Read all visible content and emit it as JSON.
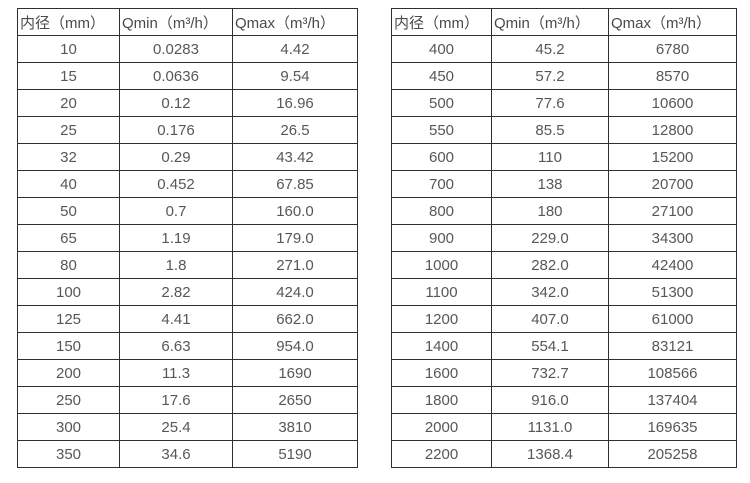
{
  "tables": [
    {
      "title": "flow-rate-table-small-diameters",
      "headers": [
        "内径（mm）",
        "Qmin（m³/h）",
        "Qmax（m³/h）"
      ],
      "rows": [
        [
          "10",
          "0.0283",
          "4.42"
        ],
        [
          "15",
          "0.0636",
          "9.54"
        ],
        [
          "20",
          "0.12",
          "16.96"
        ],
        [
          "25",
          "0.176",
          "26.5"
        ],
        [
          "32",
          "0.29",
          "43.42"
        ],
        [
          "40",
          "0.452",
          "67.85"
        ],
        [
          "50",
          "0.7",
          "160.0"
        ],
        [
          "65",
          "1.19",
          "179.0"
        ],
        [
          "80",
          "1.8",
          "271.0"
        ],
        [
          "100",
          "2.82",
          "424.0"
        ],
        [
          "125",
          "4.41",
          "662.0"
        ],
        [
          "150",
          "6.63",
          "954.0"
        ],
        [
          "200",
          "11.3",
          "1690"
        ],
        [
          "250",
          "17.6",
          "2650"
        ],
        [
          "300",
          "25.4",
          "3810"
        ],
        [
          "350",
          "34.6",
          "5190"
        ]
      ]
    },
    {
      "title": "flow-rate-table-large-diameters",
      "headers": [
        "内径（mm）",
        "Qmin（m³/h）",
        "Qmax（m³/h）"
      ],
      "rows": [
        [
          "400",
          "45.2",
          "6780"
        ],
        [
          "450",
          "57.2",
          "8570"
        ],
        [
          "500",
          "77.6",
          "10600"
        ],
        [
          "550",
          "85.5",
          "12800"
        ],
        [
          "600",
          "110",
          "15200"
        ],
        [
          "700",
          "138",
          "20700"
        ],
        [
          "800",
          "180",
          "27100"
        ],
        [
          "900",
          "229.0",
          "34300"
        ],
        [
          "1000",
          "282.0",
          "42400"
        ],
        [
          "1100",
          "342.0",
          "51300"
        ],
        [
          "1200",
          "407.0",
          "61000"
        ],
        [
          "1400",
          "554.1",
          "83121"
        ],
        [
          "1600",
          "732.7",
          "108566"
        ],
        [
          "1800",
          "916.0",
          "137404"
        ],
        [
          "2000",
          "1131.0",
          "169635"
        ],
        [
          "2200",
          "1368.4",
          "205258"
        ]
      ]
    }
  ],
  "colors": {
    "border": "#2f2f2f",
    "header_text": "#4a4a4a",
    "cell_text": "#575757",
    "background": "#ffffff"
  }
}
